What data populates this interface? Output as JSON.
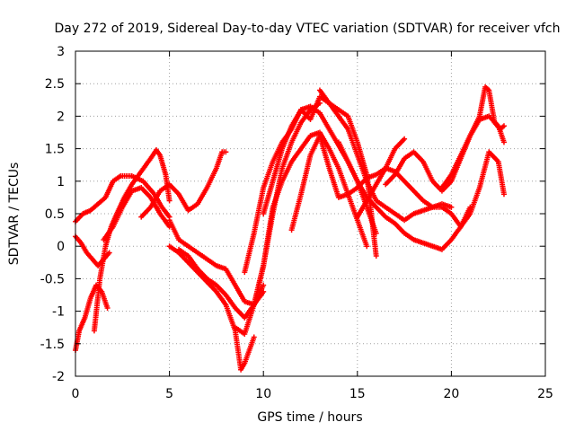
{
  "chart_data": {
    "type": "scatter",
    "title": "Day 272 of 2019, Sidereal Day-to-day VTEC variation (SDTVAR) for receiver vfch",
    "xlabel": "GPS time / hours",
    "ylabel": "SDTVAR / TECUs",
    "xlim": [
      0,
      25
    ],
    "ylim": [
      -2,
      3
    ],
    "x_ticks": [
      0,
      5,
      10,
      15,
      20,
      25
    ],
    "y_ticks": [
      -2,
      -1.5,
      -1,
      -0.5,
      0,
      0.5,
      1,
      1.5,
      2,
      2.5,
      3
    ],
    "x_tick_labels": [
      "0",
      "5",
      "10",
      "15",
      "20",
      "25"
    ],
    "y_tick_labels": [
      "-2",
      "-1.5",
      "-1",
      "-0.5",
      "0",
      "0.5",
      "1",
      "1.5",
      "2",
      "2.5",
      "3"
    ],
    "grid": true,
    "marker": "+",
    "color": "#ff0000",
    "series": [
      {
        "x": [
          0.0,
          0.4,
          0.8,
          1.2,
          1.6,
          2.0,
          2.4,
          3.0,
          3.6,
          4.2,
          4.6,
          5.0
        ],
        "y": [
          0.38,
          0.5,
          0.55,
          0.65,
          0.75,
          1.0,
          1.08,
          1.08,
          1.0,
          0.8,
          0.6,
          0.45
        ]
      },
      {
        "x": [
          0.0,
          0.3,
          0.6,
          0.9,
          1.2,
          1.5,
          1.8
        ],
        "y": [
          0.15,
          0.05,
          -0.1,
          -0.2,
          -0.3,
          -0.2,
          -0.1
        ]
      },
      {
        "x": [
          0.0,
          0.2,
          0.5,
          0.8,
          1.1,
          1.4,
          1.7
        ],
        "y": [
          -1.6,
          -1.3,
          -1.1,
          -0.8,
          -0.6,
          -0.7,
          -0.95
        ]
      },
      {
        "x": [
          1.0,
          1.3,
          1.6,
          1.9,
          2.2,
          2.6,
          3.0,
          3.5,
          4.0,
          4.3,
          4.5,
          4.8,
          5.0
        ],
        "y": [
          -1.3,
          -0.5,
          0.0,
          0.3,
          0.5,
          0.75,
          0.95,
          1.15,
          1.35,
          1.48,
          1.4,
          1.1,
          0.7
        ]
      },
      {
        "x": [
          3.5,
          4.0,
          4.5,
          5.0,
          5.5,
          6.0,
          6.5,
          7.0,
          7.5,
          7.8,
          8.0
        ],
        "y": [
          0.45,
          0.6,
          0.85,
          0.95,
          0.8,
          0.55,
          0.65,
          0.9,
          1.2,
          1.45,
          1.45
        ]
      },
      {
        "x": [
          1.5,
          2.0,
          2.5,
          3.0,
          3.5,
          4.0,
          4.5,
          5.0
        ],
        "y": [
          0.1,
          0.3,
          0.6,
          0.85,
          0.9,
          0.75,
          0.5,
          0.3
        ]
      },
      {
        "x": [
          5.0,
          5.5,
          6.0,
          6.5,
          7.0,
          7.5,
          8.0,
          8.5,
          9.0,
          9.5,
          10.0
        ],
        "y": [
          0.4,
          0.1,
          0.0,
          -0.1,
          -0.2,
          -0.3,
          -0.35,
          -0.6,
          -0.85,
          -0.9,
          -0.7
        ]
      },
      {
        "x": [
          5.0,
          5.5,
          6.0,
          6.5,
          7.0,
          7.5,
          8.0,
          8.5,
          8.8,
          9.0,
          9.5
        ],
        "y": [
          0.0,
          -0.1,
          -0.25,
          -0.4,
          -0.55,
          -0.7,
          -0.9,
          -1.3,
          -1.9,
          -1.8,
          -1.4
        ]
      },
      {
        "x": [
          5.5,
          6.0,
          6.5,
          7.0,
          7.5,
          8.0,
          8.5,
          9.0,
          9.5,
          10.0
        ],
        "y": [
          -0.05,
          -0.15,
          -0.35,
          -0.5,
          -0.6,
          -0.75,
          -0.95,
          -1.1,
          -0.9,
          -0.6
        ]
      },
      {
        "x": [
          8.5,
          9.0,
          9.5,
          10.0,
          10.5,
          11.0,
          11.5,
          12.0,
          12.5,
          13.0
        ],
        "y": [
          -1.25,
          -1.35,
          -0.9,
          -0.3,
          0.5,
          1.2,
          1.6,
          1.9,
          2.1,
          2.2
        ]
      },
      {
        "x": [
          9.0,
          9.5,
          10.0,
          10.5,
          11.0,
          11.5,
          12.0,
          12.5,
          13.0,
          13.5,
          14.0,
          14.5,
          15.0,
          15.5,
          16.0
        ],
        "y": [
          -0.4,
          0.2,
          0.9,
          1.3,
          1.6,
          1.8,
          2.1,
          2.15,
          2.05,
          1.8,
          1.55,
          1.3,
          1.0,
          0.6,
          0.2
        ]
      },
      {
        "x": [
          9.5,
          10.0,
          10.5,
          11.0,
          11.5,
          12.0,
          12.5,
          13.0,
          13.5,
          14.0,
          14.5,
          15.0,
          15.5
        ],
        "y": [
          -0.9,
          -0.3,
          0.6,
          1.0,
          1.3,
          1.5,
          1.7,
          1.75,
          1.5,
          1.2,
          0.8,
          0.4,
          0.0
        ]
      },
      {
        "x": [
          10.0,
          10.5,
          11.0,
          11.5,
          12.0,
          12.5,
          13.0,
          13.5,
          14.0,
          14.5,
          15.0,
          15.5,
          16.0
        ],
        "y": [
          0.5,
          1.0,
          1.5,
          1.85,
          2.1,
          1.95,
          2.3,
          2.2,
          2.1,
          2.0,
          1.6,
          1.1,
          -0.15
        ]
      },
      {
        "x": [
          11.5,
          12.0,
          12.5,
          13.0,
          13.5,
          14.0,
          14.5,
          15.0,
          15.5,
          16.0,
          16.5,
          17.0,
          17.5
        ],
        "y": [
          0.25,
          0.8,
          1.4,
          1.7,
          1.2,
          0.75,
          0.8,
          0.9,
          1.05,
          1.1,
          1.2,
          1.5,
          1.65
        ]
      },
      {
        "x": [
          13.0,
          13.5,
          14.0,
          14.5,
          15.0,
          15.5,
          16.0,
          16.5,
          17.0,
          17.5,
          18.0,
          18.5,
          19.0,
          19.5,
          20.0
        ],
        "y": [
          2.4,
          2.2,
          2.0,
          1.8,
          1.4,
          1.0,
          0.7,
          0.6,
          0.5,
          0.4,
          0.5,
          0.55,
          0.6,
          0.65,
          0.6
        ]
      },
      {
        "x": [
          14.0,
          14.5,
          15.0,
          15.5,
          16.0,
          16.5,
          17.0,
          17.5,
          18.0,
          18.5,
          19.0,
          19.5,
          20.0,
          20.5,
          21.0
        ],
        "y": [
          1.6,
          1.3,
          1.0,
          0.75,
          0.6,
          0.45,
          0.35,
          0.2,
          0.1,
          0.05,
          0.0,
          -0.05,
          0.1,
          0.3,
          0.6
        ]
      },
      {
        "x": [
          15.0,
          15.5,
          16.0,
          16.5,
          17.0,
          17.5,
          18.0,
          18.5,
          19.0,
          19.5,
          20.0,
          20.5,
          21.0,
          21.5,
          22.0,
          22.5,
          22.8
        ],
        "y": [
          0.45,
          0.7,
          0.95,
          1.2,
          1.15,
          1.0,
          0.85,
          0.7,
          0.6,
          0.6,
          0.5,
          0.3,
          0.5,
          0.9,
          1.45,
          1.3,
          0.8
        ]
      },
      {
        "x": [
          16.5,
          17.0,
          17.5,
          18.0,
          18.5,
          19.0,
          19.5,
          20.0,
          20.5,
          21.0,
          21.5,
          22.0,
          22.5,
          22.8
        ],
        "y": [
          0.95,
          1.1,
          1.35,
          1.45,
          1.3,
          1.0,
          0.85,
          1.0,
          1.35,
          1.7,
          1.95,
          2.0,
          1.85,
          1.6
        ]
      },
      {
        "x": [
          19.5,
          20.0,
          20.5,
          21.0,
          21.5,
          21.8,
          22.0,
          22.3,
          22.6,
          22.8
        ],
        "y": [
          0.9,
          1.1,
          1.4,
          1.7,
          2.0,
          2.45,
          2.4,
          1.9,
          1.8,
          1.85
        ]
      }
    ]
  }
}
